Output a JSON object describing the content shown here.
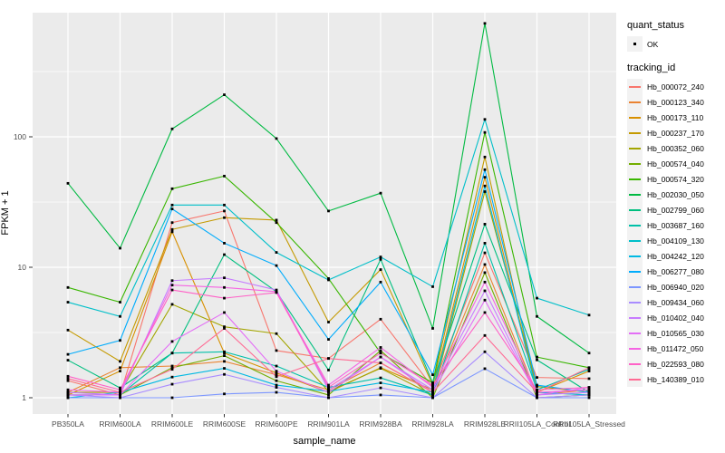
{
  "figure": {
    "background": "#FFFFFF",
    "panel_background": "#EBEBEB",
    "grid_color": "#FFFFFF",
    "tick_label_color": "#4D4D4D",
    "point_color": "#000000"
  },
  "legend": {
    "quant_status_title": "quant_status",
    "quant_status_items": [
      {
        "label": "OK",
        "marker": "black-point"
      }
    ],
    "tracking_title": "tracking_id"
  },
  "chart_data": {
    "type": "line",
    "title": "",
    "xlabel": "sample_name",
    "ylabel": "FPKM + 1",
    "yscale": "log10",
    "ylim": [
      1,
      1000
    ],
    "y_ticks": [
      "1",
      "10",
      "100"
    ],
    "grid": "on",
    "legend_position": "right",
    "point_marker": "black square, one per observation (quant_status = OK)",
    "categories": [
      "PB350LA",
      "RRIM600LA",
      "RRIM600LE",
      "RRIM600SE",
      "RRIM600PE",
      "RRIM901LA",
      "RRIM928BA",
      "RRIM928LA",
      "RRIM928LE",
      "RRII105LA_Control",
      "RRII105LA_Stressed"
    ],
    "series": [
      {
        "name": "Hb_000072_240",
        "color": "#F8766D",
        "values": [
          1.35,
          1.05,
          22,
          27,
          2.3,
          2.0,
          4.0,
          1.2,
          12.9,
          1.43,
          1.4
        ]
      },
      {
        "name": "Hb_000123_340",
        "color": "#EA8331",
        "values": [
          1.1,
          1.7,
          1.75,
          1.9,
          1.5,
          1.15,
          1.85,
          1.1,
          10.5,
          1.05,
          1.15
        ]
      },
      {
        "name": "Hb_000173_110",
        "color": "#D89000",
        "values": [
          1.05,
          1.6,
          18.7,
          2.2,
          1.55,
          1.1,
          1.7,
          1.15,
          49,
          1.1,
          1.6
        ]
      },
      {
        "name": "Hb_000237_170",
        "color": "#C49A00",
        "values": [
          3.3,
          1.9,
          19.5,
          24,
          23,
          3.8,
          9.6,
          1.25,
          70,
          1.1,
          1.05
        ]
      },
      {
        "name": "Hb_000352_060",
        "color": "#A3A500",
        "values": [
          1.1,
          1.1,
          5.2,
          3.5,
          3.1,
          1.12,
          1.68,
          1.05,
          38,
          1.22,
          1.1
        ]
      },
      {
        "name": "Hb_000574_040",
        "color": "#72AD00",
        "values": [
          1.05,
          1.05,
          1.7,
          2.1,
          1.35,
          1.05,
          2.3,
          1.0,
          9.1,
          1.0,
          1.05
        ]
      },
      {
        "name": "Hb_000574_320",
        "color": "#39B600",
        "values": [
          7.0,
          5.4,
          40,
          50,
          22,
          8.2,
          2.2,
          1.3,
          108,
          2.05,
          1.7
        ]
      },
      {
        "name": "Hb_002030_050",
        "color": "#00BA42",
        "values": [
          44,
          14,
          115,
          210,
          97,
          27,
          37,
          3.4,
          740,
          4.2,
          2.2
        ]
      },
      {
        "name": "Hb_002799_060",
        "color": "#00BF7F",
        "values": [
          1.94,
          1.19,
          2.2,
          12.5,
          6.5,
          1.63,
          11.5,
          1.3,
          21.4,
          1.95,
          1.1
        ]
      },
      {
        "name": "Hb_003687_160",
        "color": "#00C0A8",
        "values": [
          1.05,
          1.05,
          2.2,
          2.25,
          1.75,
          1.2,
          1.42,
          1.05,
          15.3,
          1.15,
          1.65
        ]
      },
      {
        "name": "Hb_004109_130",
        "color": "#00BFC9",
        "values": [
          5.4,
          4.2,
          30,
          30,
          13,
          8.0,
          12,
          7.1,
          136,
          5.8,
          4.3
        ]
      },
      {
        "name": "Hb_004242_120",
        "color": "#00B9E3",
        "values": [
          1.0,
          1.1,
          1.44,
          1.68,
          1.25,
          1.12,
          1.3,
          1.1,
          42,
          1.1,
          1.05
        ]
      },
      {
        "name": "Hb_006277_080",
        "color": "#00ACFC",
        "values": [
          2.15,
          2.75,
          28,
          15.3,
          10.3,
          2.8,
          7.7,
          1.5,
          56,
          1.25,
          1.1
        ]
      },
      {
        "name": "Hb_006940_020",
        "color": "#7C96FF",
        "values": [
          1.0,
          1.0,
          1.0,
          1.07,
          1.1,
          1.0,
          1.05,
          1.0,
          1.67,
          1.0,
          1.0
        ]
      },
      {
        "name": "Hb_009434_060",
        "color": "#A98CFF",
        "values": [
          1.05,
          1.0,
          1.27,
          1.51,
          1.2,
          1.0,
          1.19,
          1.0,
          2.25,
          1.0,
          1.05
        ]
      },
      {
        "name": "Hb_010402_040",
        "color": "#C77CFF",
        "values": [
          1.1,
          1.05,
          7.9,
          8.3,
          6.7,
          1.15,
          2.05,
          1.15,
          6.6,
          1.05,
          1.1
        ]
      },
      {
        "name": "Hb_010565_030",
        "color": "#E36EF6",
        "values": [
          1.05,
          1.05,
          2.7,
          4.5,
          1.6,
          1.1,
          2.05,
          1.1,
          5.6,
          1.05,
          1.2
        ]
      },
      {
        "name": "Hb_011472_050",
        "color": "#F564E3",
        "values": [
          1.15,
          1.1,
          7.3,
          7.0,
          6.5,
          1.25,
          2.43,
          1.2,
          7.7,
          1.1,
          1.15
        ]
      },
      {
        "name": "Hb_022593_080",
        "color": "#FF61C7",
        "values": [
          1.46,
          1.15,
          6.7,
          5.8,
          6.4,
          1.2,
          2.2,
          1.25,
          4.5,
          1.15,
          1.2
        ]
      },
      {
        "name": "Hb_140389_010",
        "color": "#FF6B94",
        "values": [
          1.4,
          1.1,
          1.65,
          3.4,
          1.45,
          2.0,
          1.85,
          1.1,
          3.0,
          1.1,
          1.7
        ]
      }
    ]
  }
}
